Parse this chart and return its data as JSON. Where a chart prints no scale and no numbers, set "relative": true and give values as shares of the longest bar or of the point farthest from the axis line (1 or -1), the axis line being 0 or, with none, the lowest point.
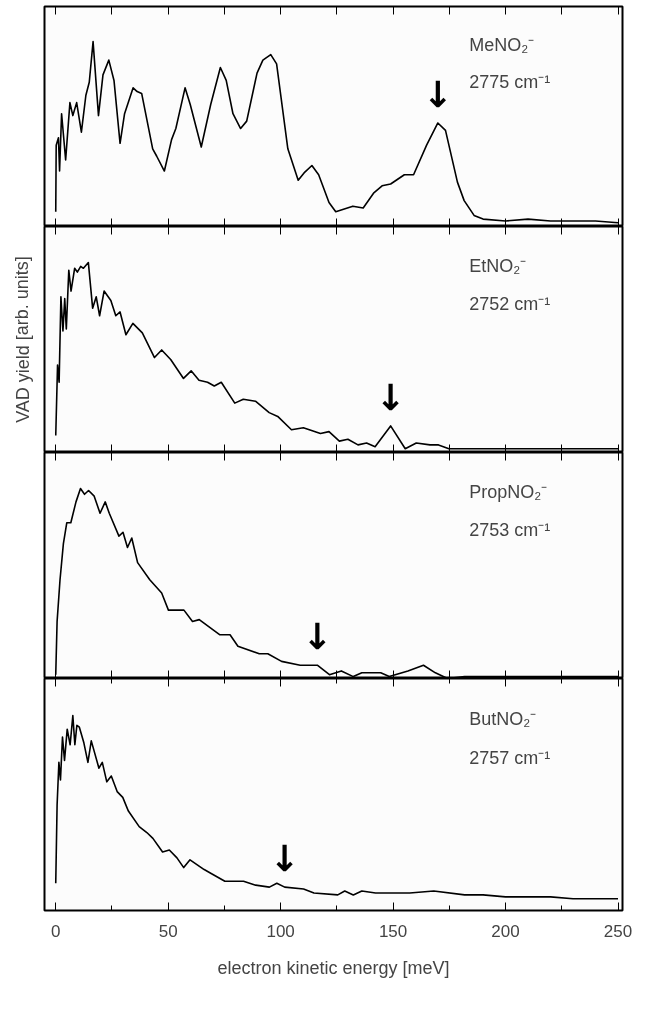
{
  "chart_data": [
    {
      "type": "line",
      "relative": true,
      "xlim": [
        -5,
        252
      ],
      "xticks": [
        {
          "value": 0,
          "label": null
        },
        {
          "value": 25,
          "label": null
        },
        {
          "value": 50,
          "label": null
        },
        {
          "value": 75,
          "label": null
        },
        {
          "value": 100,
          "label": null
        },
        {
          "value": 125,
          "label": null
        },
        {
          "value": 150,
          "label": null
        },
        {
          "value": 175,
          "label": null
        },
        {
          "value": 200,
          "label": null
        },
        {
          "value": 225,
          "label": null
        },
        {
          "value": 250,
          "label": null
        }
      ],
      "tick_labels": false,
      "grid": false,
      "marker": "none",
      "line_style": "solid",
      "annotations": [
        "MeNO₂⁻",
        "2775 cm⁻¹",
        {
          "text": "↓",
          "x": 169.9,
          "y": 0.56
        }
      ],
      "series": [
        {
          "color": "#000000",
          "x": [
            0.0,
            0.2,
            1.2,
            1.7,
            2.6,
            4.4,
            6.3,
            7.6,
            9.3,
            11.4,
            13.4,
            14.9,
            16.6,
            19.0,
            21.0,
            23.6,
            25.9,
            28.6,
            30.6,
            34.4,
            36.2,
            38.2,
            43.1,
            44.9,
            48.3,
            51.5,
            53.4,
            57.5,
            59.8,
            64.7,
            68.9,
            73.2,
            75.8,
            78.8,
            82.2,
            84.9,
            89.5,
            92.1,
            95.6,
            98.2,
            103.2,
            107.8,
            110.4,
            113.9,
            116.9,
            121.5,
            124.5,
            132.1,
            136.7,
            141.3,
            145.1,
            148.9,
            155.0,
            159.1,
            164.9,
            169.9,
            173.3,
            178.6,
            181.6,
            186,
            190,
            200,
            210,
            220,
            230,
            240,
            250
          ],
          "values": [
            0.08,
            0.44,
            0.48,
            0.3,
            0.61,
            0.36,
            0.67,
            0.6,
            0.67,
            0.51,
            0.71,
            0.78,
            1.0,
            0.6,
            0.82,
            0.9,
            0.79,
            0.45,
            0.61,
            0.75,
            0.73,
            0.72,
            0.42,
            0.38,
            0.3,
            0.47,
            0.53,
            0.75,
            0.66,
            0.43,
            0.66,
            0.86,
            0.79,
            0.61,
            0.53,
            0.57,
            0.83,
            0.9,
            0.93,
            0.88,
            0.42,
            0.25,
            0.29,
            0.33,
            0.28,
            0.13,
            0.08,
            0.11,
            0.1,
            0.18,
            0.22,
            0.23,
            0.28,
            0.28,
            0.44,
            0.56,
            0.52,
            0.24,
            0.14,
            0.06,
            0.04,
            0.03,
            0.04,
            0.03,
            0.03,
            0.03,
            0.02
          ]
        }
      ]
    },
    {
      "type": "line",
      "relative": true,
      "xlim": [
        -5,
        252
      ],
      "xticks": [
        {
          "value": 0,
          "label": null
        },
        {
          "value": 25,
          "label": null
        },
        {
          "value": 50,
          "label": null
        },
        {
          "value": 75,
          "label": null
        },
        {
          "value": 100,
          "label": null
        },
        {
          "value": 125,
          "label": null
        },
        {
          "value": 150,
          "label": null
        },
        {
          "value": 175,
          "label": null
        },
        {
          "value": 200,
          "label": null
        },
        {
          "value": 225,
          "label": null
        },
        {
          "value": 250,
          "label": null
        }
      ],
      "tick_labels": false,
      "grid": false,
      "marker": "none",
      "line_style": "solid",
      "ylabel": "VAD yield [arb. units]",
      "annotations": [
        "EtNO₂⁻",
        "2752 cm⁻¹",
        {
          "text": "↓",
          "x": 148.9,
          "y": 0.14
        }
      ],
      "series": [
        {
          "color": "#000000",
          "x": [
            0.0,
            0.8,
            1.5,
            2.3,
            3.2,
            4.0,
            4.7,
            5.8,
            6.8,
            8.4,
            9.6,
            11.1,
            12.3,
            14.5,
            16.4,
            18.0,
            19.5,
            21.5,
            24.5,
            26.7,
            28.6,
            31.2,
            34.3,
            38.5,
            43.9,
            47.1,
            51.1,
            56.8,
            60.2,
            63.7,
            67.5,
            70.5,
            73.6,
            79.6,
            83.4,
            88.8,
            94.9,
            98.7,
            104.8,
            110.1,
            117.7,
            121.5,
            126.1,
            129.9,
            134.4,
            138.2,
            142.0,
            148.9,
            155.4,
            160.3,
            166.4,
            170.2,
            174.8,
            181.6,
            190,
            200,
            210,
            220,
            230,
            240,
            250
          ],
          "values": [
            0.09,
            0.46,
            0.37,
            0.82,
            0.64,
            0.81,
            0.65,
            0.96,
            0.85,
            0.97,
            0.95,
            0.98,
            0.97,
            1.0,
            0.76,
            0.82,
            0.72,
            0.85,
            0.8,
            0.72,
            0.74,
            0.62,
            0.68,
            0.63,
            0.5,
            0.54,
            0.49,
            0.39,
            0.43,
            0.38,
            0.37,
            0.35,
            0.37,
            0.26,
            0.28,
            0.27,
            0.21,
            0.19,
            0.12,
            0.13,
            0.1,
            0.11,
            0.06,
            0.07,
            0.04,
            0.05,
            0.03,
            0.14,
            0.02,
            0.05,
            0.04,
            0.04,
            0.02,
            0.02,
            0.02,
            0.02,
            0.02,
            0.02,
            0.02,
            0.02,
            0.02
          ]
        }
      ]
    },
    {
      "type": "line",
      "relative": true,
      "xlim": [
        -5,
        252
      ],
      "xticks": [
        {
          "value": 0,
          "label": null
        },
        {
          "value": 25,
          "label": null
        },
        {
          "value": 50,
          "label": null
        },
        {
          "value": 75,
          "label": null
        },
        {
          "value": 100,
          "label": null
        },
        {
          "value": 125,
          "label": null
        },
        {
          "value": 150,
          "label": null
        },
        {
          "value": 175,
          "label": null
        },
        {
          "value": 200,
          "label": null
        },
        {
          "value": 225,
          "label": null
        },
        {
          "value": 250,
          "label": null
        }
      ],
      "tick_labels": false,
      "grid": false,
      "marker": "none",
      "line_style": "solid",
      "annotations": [
        "PropNO₂⁻",
        "2753 cm⁻¹",
        {
          "text": "↓",
          "x": 116.3,
          "y": 0.07
        }
      ],
      "series": [
        {
          "color": "#000000",
          "x": [
            0.0,
            0.6,
            1.9,
            3.4,
            4.9,
            6.7,
            9.0,
            11.0,
            12.8,
            14.6,
            17.1,
            19.7,
            22.0,
            23.8,
            28.1,
            29.9,
            31.9,
            33.8,
            36.4,
            41.8,
            47.1,
            50.1,
            57.0,
            60.8,
            63.8,
            73.0,
            77.5,
            81.0,
            90.5,
            94.3,
            100.4,
            108.7,
            116.3,
            121.7,
            127.0,
            132.3,
            136.1,
            144.5,
            148.3,
            156.6,
            163.5,
            168.8,
            174.2,
            181.8,
            190,
            200,
            210,
            220,
            230,
            240,
            250
          ],
          "values": [
            0.02,
            0.3,
            0.52,
            0.71,
            0.82,
            0.82,
            0.93,
            1.0,
            0.97,
            0.99,
            0.96,
            0.87,
            0.93,
            0.87,
            0.75,
            0.77,
            0.69,
            0.74,
            0.61,
            0.52,
            0.45,
            0.36,
            0.36,
            0.3,
            0.31,
            0.23,
            0.23,
            0.17,
            0.13,
            0.13,
            0.09,
            0.07,
            0.07,
            0.02,
            0.04,
            0.01,
            0.03,
            0.03,
            0.01,
            0.04,
            0.07,
            0.03,
            0.0,
            0.01,
            0.01,
            0.01,
            0.01,
            0.01,
            0.01,
            0.01,
            0.01
          ]
        }
      ]
    },
    {
      "type": "line",
      "relative": true,
      "xlabel": "electron kinetic energy [meV]",
      "xlim": [
        -5,
        252
      ],
      "xticks": [
        0,
        {
          "value": 25,
          "label": null
        },
        50,
        {
          "value": 75,
          "label": null
        },
        100,
        {
          "value": 125,
          "label": null
        },
        150,
        {
          "value": 175,
          "label": null
        },
        200,
        {
          "value": 225,
          "label": null
        },
        250
      ],
      "tick_labels": "x",
      "grid": false,
      "marker": "none",
      "line_style": "solid",
      "annotations": [
        "ButNO₂⁻",
        "2757 cm⁻¹",
        {
          "text": "↓",
          "x": 101.8,
          "y": 0.12
        }
      ],
      "series": [
        {
          "color": "#000000",
          "x": [
            0.0,
            0.6,
            1.4,
            2.1,
            3.0,
            3.9,
            5.1,
            6.4,
            7.6,
            8.5,
            9.4,
            10.5,
            12.5,
            14.3,
            15.8,
            19.2,
            20.7,
            22.7,
            24.7,
            27.3,
            29.8,
            32.3,
            37.1,
            40.5,
            43.2,
            47.5,
            50.5,
            53.9,
            56.9,
            59.7,
            66.0,
            69.1,
            75.2,
            83.5,
            88.9,
            95.0,
            98.3,
            101.8,
            110.2,
            114.8,
            125.4,
            128.5,
            132.3,
            136.1,
            142.2,
            149.8,
            157.4,
            168.1,
            181.8,
            190,
            200,
            210,
            220,
            230,
            240,
            250
          ],
          "values": [
            0.14,
            0.54,
            0.76,
            0.67,
            0.89,
            0.77,
            0.93,
            0.85,
            1.0,
            0.85,
            0.95,
            0.94,
            0.86,
            0.76,
            0.87,
            0.73,
            0.76,
            0.66,
            0.69,
            0.61,
            0.58,
            0.51,
            0.43,
            0.4,
            0.37,
            0.3,
            0.31,
            0.27,
            0.22,
            0.26,
            0.21,
            0.19,
            0.15,
            0.15,
            0.13,
            0.12,
            0.14,
            0.12,
            0.11,
            0.09,
            0.08,
            0.1,
            0.08,
            0.1,
            0.09,
            0.09,
            0.09,
            0.1,
            0.08,
            0.08,
            0.07,
            0.07,
            0.07,
            0.06,
            0.06,
            0.06
          ]
        }
      ]
    }
  ]
}
